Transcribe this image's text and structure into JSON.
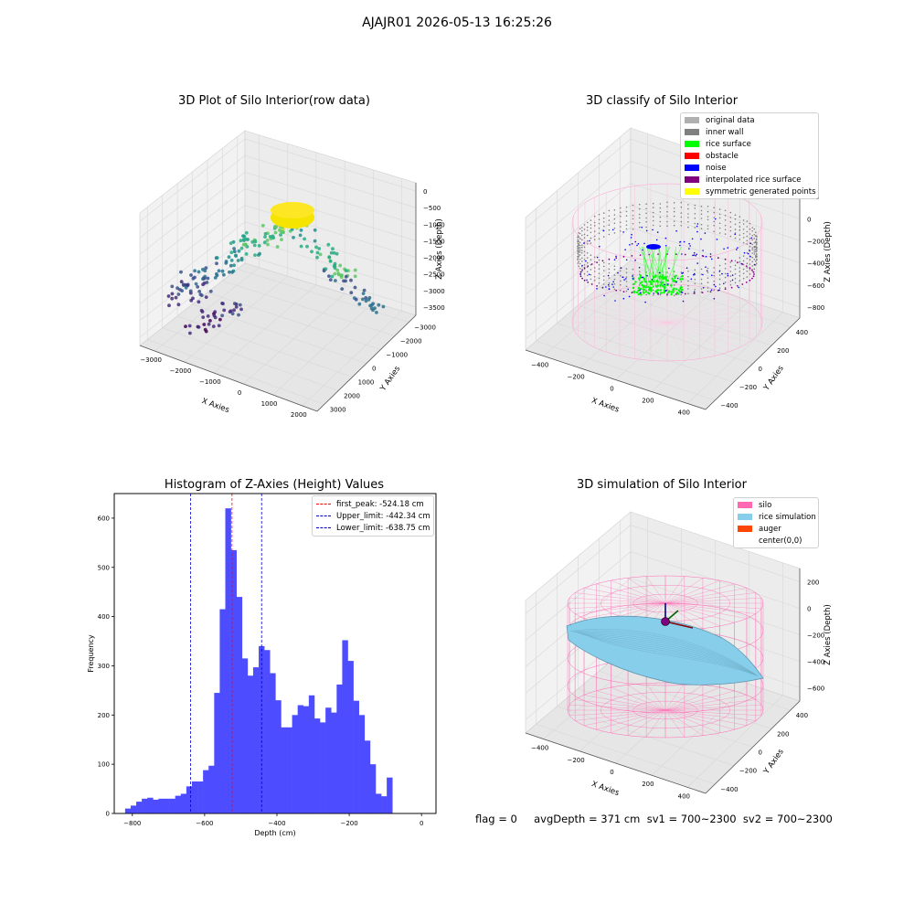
{
  "suptitle": "AJAJR01 2026-05-13 16:25:26",
  "status_text": "flag = 0     avgDepth = 371 cm  sv1 = 700~2300  sv2 = 700~2300",
  "colors": {
    "hist_bar": "#4d4dff",
    "first_peak": "#ff0000",
    "limits": "#0000cc",
    "silo": "#ff69b4",
    "rice_simulation": "#87ceeb",
    "auger": "#ff4500",
    "inner_wall": "#808080",
    "rice_surface": "#00ff00",
    "noise": "#0000ff",
    "interpolated_rice_surface": "#800080",
    "symmetric": "#ffff00"
  },
  "chart_data": [
    {
      "type": "scatter",
      "projection": "3d",
      "title": "3D Plot of Silo Interior(row data)",
      "xlabel": "X Axies",
      "ylabel": "Y Axies",
      "zlabel": "Z Axies (Depth)",
      "xticks": [
        "−3000",
        "−2000",
        "−1000",
        "0",
        "1000",
        "2000"
      ],
      "yticks": [
        "−3000",
        "−2000",
        "−1000",
        "0",
        "1000",
        "2000",
        "3000"
      ],
      "zticks": [
        "0",
        "−500",
        "−1000",
        "−1500",
        "−2000",
        "−2500",
        "−3000",
        "−3500"
      ],
      "xlim": [
        -3000,
        2000
      ],
      "ylim": [
        -3000,
        3000
      ],
      "zlim": [
        -3600,
        200
      ],
      "colormap": "viridis"
    },
    {
      "type": "scatter",
      "projection": "3d",
      "title": "3D classify of Silo Interior",
      "xlabel": "X Axies",
      "ylabel": "Y Axies",
      "zlabel": "Z Axies (Depth)",
      "xticks": [
        "−400",
        "−200",
        "0",
        "200",
        "400"
      ],
      "yticks": [
        "−400",
        "−200",
        "0",
        "200",
        "400"
      ],
      "zticks": [
        "200",
        "0",
        "−200",
        "−400",
        "−600",
        "−800"
      ],
      "xlim": [
        -500,
        500
      ],
      "ylim": [
        -500,
        500
      ],
      "zlim": [
        -850,
        250
      ],
      "legend_position": "top-right",
      "legend": [
        {
          "label": "original data",
          "color": "#b0b0b0"
        },
        {
          "label": "inner wall",
          "color": "#808080"
        },
        {
          "label": "rice surface",
          "color": "#00ff00"
        },
        {
          "label": "obstacle",
          "color": "#ff0000"
        },
        {
          "label": "noise",
          "color": "#0000ff"
        },
        {
          "label": "interpolated rice surface",
          "color": "#800080"
        },
        {
          "label": "symmetric generated points",
          "color": "#ffff00"
        }
      ]
    },
    {
      "type": "bar",
      "title": "Histogram of Z-Axies (Height) Values",
      "xlabel": "Depth (cm)",
      "ylabel": "Frequency",
      "xlim": [
        -850,
        40
      ],
      "ylim": [
        0,
        650
      ],
      "xticks": [
        -800,
        -600,
        -400,
        -200,
        0
      ],
      "xtick_labels": [
        "−800",
        "−600",
        "−400",
        "−200",
        "0"
      ],
      "yticks": [
        0,
        100,
        200,
        300,
        400,
        500,
        600
      ],
      "bin_width": 15.4,
      "bin_start": -820,
      "values": [
        10,
        16,
        24,
        30,
        32,
        28,
        30,
        30,
        30,
        36,
        40,
        55,
        65,
        65,
        88,
        97,
        245,
        415,
        620,
        535,
        440,
        315,
        280,
        297,
        340,
        332,
        285,
        230,
        175,
        175,
        200,
        220,
        218,
        240,
        193,
        185,
        215,
        205,
        262,
        352,
        310,
        229,
        200,
        148,
        100,
        40,
        35,
        73
      ],
      "vlines": [
        {
          "name": "first_peak: -524.18 cm",
          "x": -524.18,
          "color": "#ff0000"
        },
        {
          "name": "Upper_limit: -442.34 cm",
          "x": -442.34,
          "color": "#0000cc"
        },
        {
          "name": "Lower_limit: -638.75 cm",
          "x": -638.75,
          "color": "#0000cc"
        }
      ],
      "legend_position": "top-right"
    },
    {
      "type": "surface",
      "projection": "3d",
      "title": "3D simulation of Silo Interior",
      "xlabel": "X Axies",
      "ylabel": "Y Axies",
      "zlabel": "Z Axies (Depth)",
      "xticks": [
        "−400",
        "−200",
        "0",
        "200",
        "400"
      ],
      "yticks": [
        "−400",
        "−200",
        "0",
        "200",
        "400"
      ],
      "zticks": [
        "200",
        "0",
        "−200",
        "−400",
        "−600"
      ],
      "xlim": [
        -500,
        500
      ],
      "ylim": [
        -500,
        500
      ],
      "zlim": [
        -700,
        250
      ],
      "legend_position": "top-right",
      "legend": [
        {
          "label": "silo",
          "color": "#ff69b4"
        },
        {
          "label": "rice simulation",
          "color": "#87ceeb"
        },
        {
          "label": "auger",
          "color": "#ff4500"
        },
        {
          "label": "center(0,0)",
          "color": ""
        }
      ]
    }
  ]
}
